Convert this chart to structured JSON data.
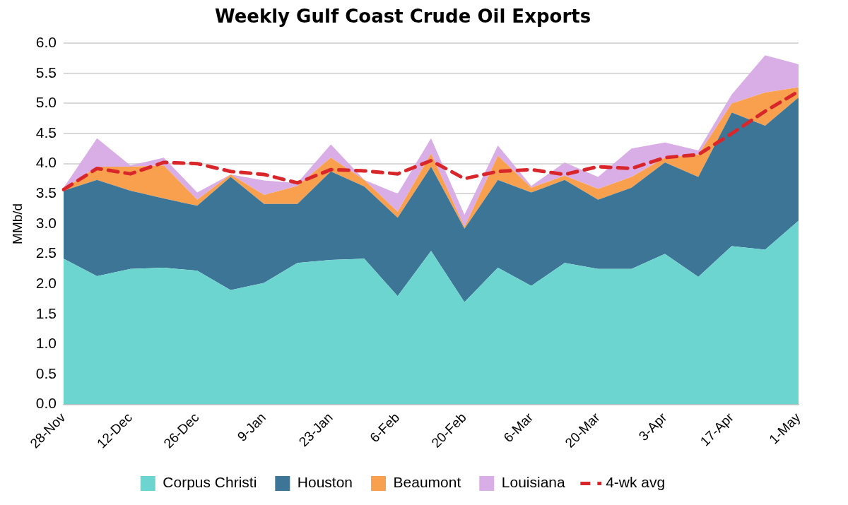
{
  "chart_data": {
    "type": "area",
    "title": "Weekly Gulf Coast Crude Oil Exports",
    "ylabel": "MMb/d",
    "categories": [
      "28-Nov",
      null,
      "12-Dec",
      null,
      "26-Dec",
      null,
      "9-Jan",
      null,
      "23-Jan",
      null,
      "6-Feb",
      null,
      "20-Feb",
      null,
      "6-Mar",
      null,
      "20-Mar",
      null,
      "3-Apr",
      null,
      "17-Apr",
      null,
      "1-May"
    ],
    "stacked": true,
    "ylim": [
      0,
      6
    ],
    "yticks": [
      {
        "value": 0,
        "label": "0.0"
      },
      {
        "value": 0.5,
        "label": "0.5"
      },
      {
        "value": 1,
        "label": "1.0"
      },
      {
        "value": 1.5,
        "label": "1.5"
      },
      {
        "value": 2,
        "label": "2.0"
      },
      {
        "value": 2.5,
        "label": "2.5"
      },
      {
        "value": 3,
        "label": "3.0"
      },
      {
        "value": 3.5,
        "label": "3.5"
      },
      {
        "value": 4,
        "label": "4.0"
      },
      {
        "value": 4.5,
        "label": "4.5"
      },
      {
        "value": 5,
        "label": "5.0"
      },
      {
        "value": 5.5,
        "label": "5.5"
      },
      {
        "value": 6,
        "label": "6.0"
      }
    ],
    "grid": "y",
    "legend": "bottom",
    "series": [
      {
        "name": "Corpus Christi",
        "type": "area",
        "color": "#6dd5cf",
        "values": [
          2.42,
          2.13,
          2.25,
          2.27,
          2.22,
          1.9,
          2.02,
          2.35,
          2.4,
          2.42,
          1.8,
          2.55,
          1.7,
          2.27,
          1.97,
          2.35,
          2.25,
          2.25,
          2.5,
          2.12,
          2.63,
          2.57,
          3.05
        ]
      },
      {
        "name": "Houston",
        "type": "area",
        "color": "#3d7597",
        "values": [
          1.13,
          1.6,
          1.3,
          1.15,
          1.08,
          1.88,
          1.31,
          0.98,
          1.47,
          1.2,
          1.3,
          1.4,
          1.22,
          1.46,
          1.55,
          1.38,
          1.15,
          1.35,
          1.52,
          1.66,
          2.22,
          2.06,
          2.05
        ]
      },
      {
        "name": "Beaumont",
        "type": "area",
        "color": "#f9a04e",
        "values": [
          0.02,
          0.22,
          0.4,
          0.55,
          0.1,
          0.04,
          0.15,
          0.3,
          0.23,
          0.11,
          0.1,
          0.22,
          0.03,
          0.4,
          0.08,
          0.07,
          0.18,
          0.18,
          0.08,
          0.37,
          0.15,
          0.55,
          0.17
        ]
      },
      {
        "name": "Louisiana",
        "type": "area",
        "color": "#d9aee6",
        "values": [
          0.03,
          0.47,
          0.02,
          0.13,
          0.12,
          0,
          0.24,
          0.05,
          0.22,
          0,
          0.3,
          0.25,
          0.2,
          0.17,
          0.03,
          0.22,
          0.2,
          0.47,
          0.25,
          0.07,
          0.15,
          0.62,
          0.38
        ]
      },
      {
        "name": "4-wk avg",
        "type": "line",
        "color": "#d9262b",
        "line_style": "dashed",
        "values": [
          3.57,
          3.92,
          3.83,
          4.02,
          4.0,
          3.87,
          3.82,
          3.68,
          3.9,
          3.88,
          3.83,
          4.05,
          3.75,
          3.87,
          3.9,
          3.82,
          3.95,
          3.92,
          4.1,
          4.15,
          4.5,
          4.87,
          5.2
        ]
      }
    ]
  }
}
